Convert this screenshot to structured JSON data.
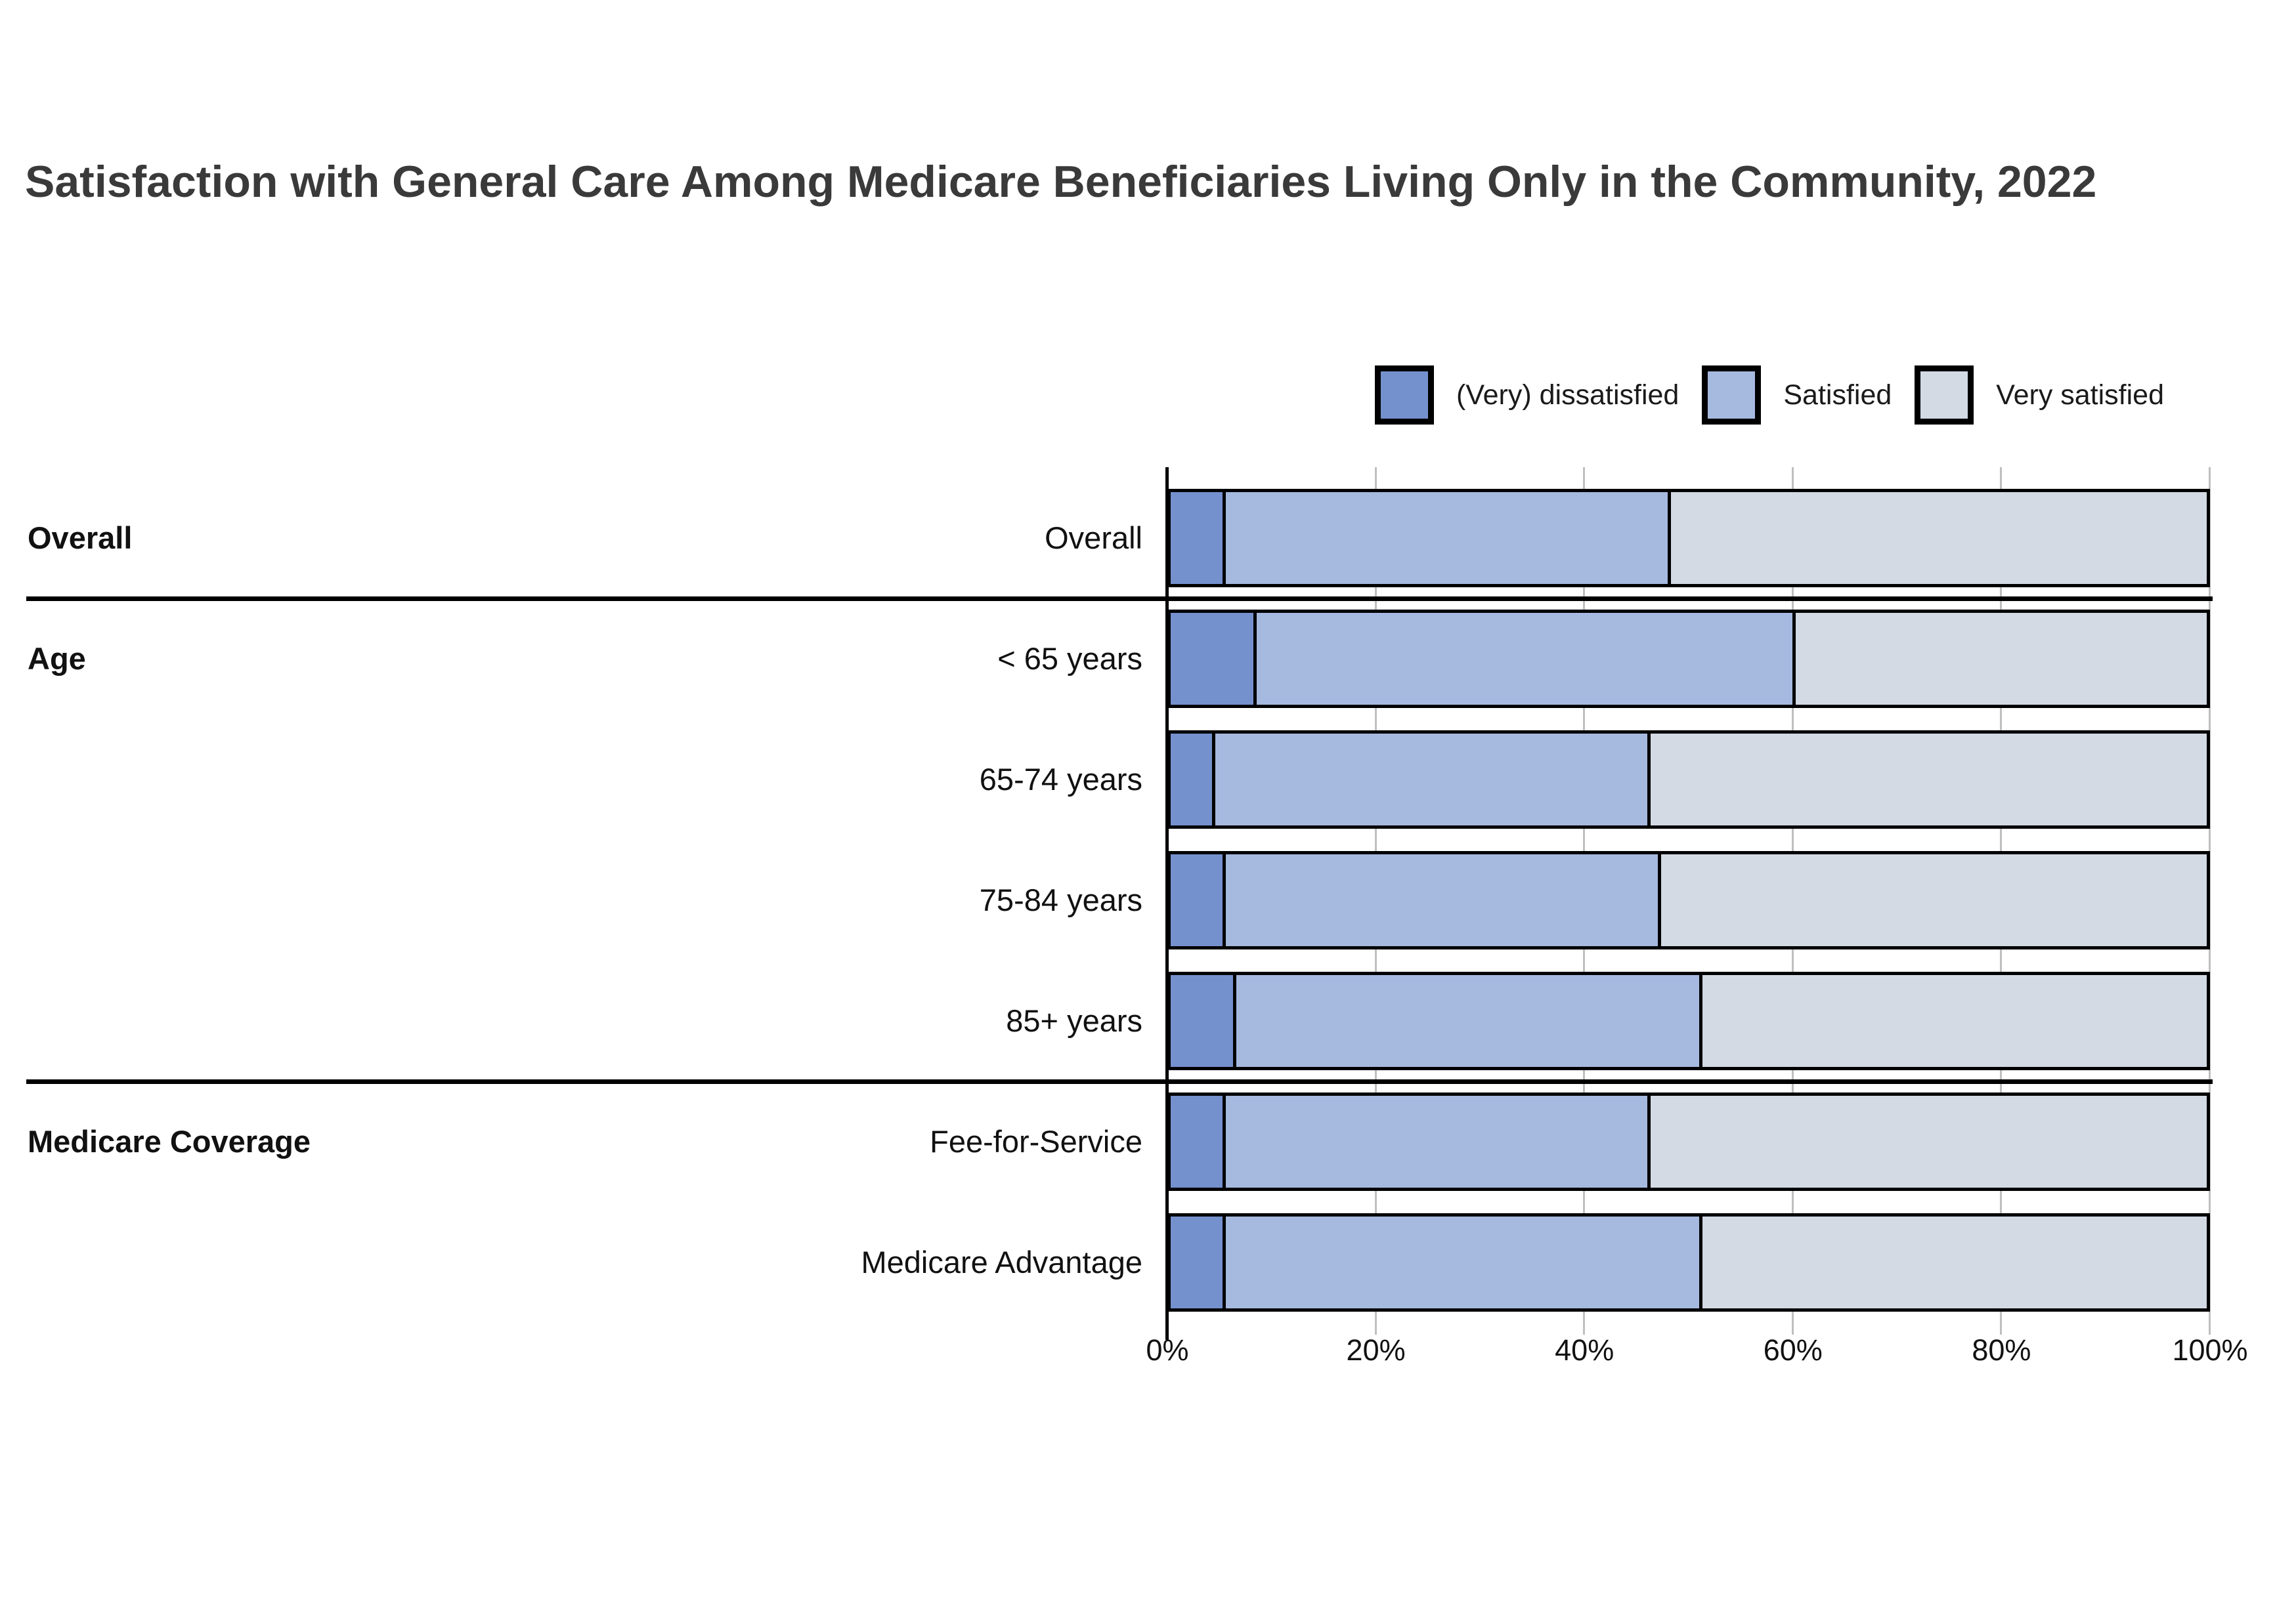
{
  "title": "Satisfaction with General Care Among Medicare Beneficiaries Living Only in the Community, 2022",
  "legend": [
    {
      "label": "(Very) dissatisfied",
      "color": "#7491CE"
    },
    {
      "label": "Satisfied",
      "color": "#A6B9DF"
    },
    {
      "label": "Very satisfied",
      "color": "#D4DAE4"
    }
  ],
  "chart_data": {
    "type": "bar",
    "orientation": "horizontal",
    "stacked": true,
    "units": "percent",
    "xlim": [
      0,
      100
    ],
    "grid": "vertical",
    "legend_position": "top-right",
    "x_tick_labels": [
      "0%",
      "20%",
      "40%",
      "60%",
      "80%",
      "100%"
    ],
    "x_tick_values": [
      0,
      20,
      40,
      60,
      80,
      100
    ],
    "series_names": [
      "(Very) dissatisfied",
      "Satisfied",
      "Very satisfied"
    ],
    "groups": [
      {
        "group": "Overall",
        "rows": [
          {
            "label": "Overall",
            "values": [
              5,
              43,
              52
            ]
          }
        ]
      },
      {
        "group": "Age",
        "rows": [
          {
            "label": "< 65 years",
            "values": [
              8,
              52,
              40
            ]
          },
          {
            "label": "65-74 years",
            "values": [
              4,
              42,
              54
            ]
          },
          {
            "label": "75-84 years",
            "values": [
              5,
              42,
              53
            ]
          },
          {
            "label": "85+ years",
            "values": [
              6,
              45,
              49
            ]
          }
        ]
      },
      {
        "group": "Medicare Coverage",
        "rows": [
          {
            "label": "Fee-for-Service",
            "values": [
              5,
              41,
              54
            ]
          },
          {
            "label": "Medicare Advantage",
            "values": [
              5,
              46,
              49
            ]
          }
        ]
      }
    ]
  },
  "colors": {
    "dissatisfied": "#7491CE",
    "satisfied": "#A6B9DF",
    "very_satisfied": "#D4DAE4",
    "bar_border": "#000000",
    "title_text": "#3a3a3a",
    "gridline": "#8a8a8a"
  }
}
